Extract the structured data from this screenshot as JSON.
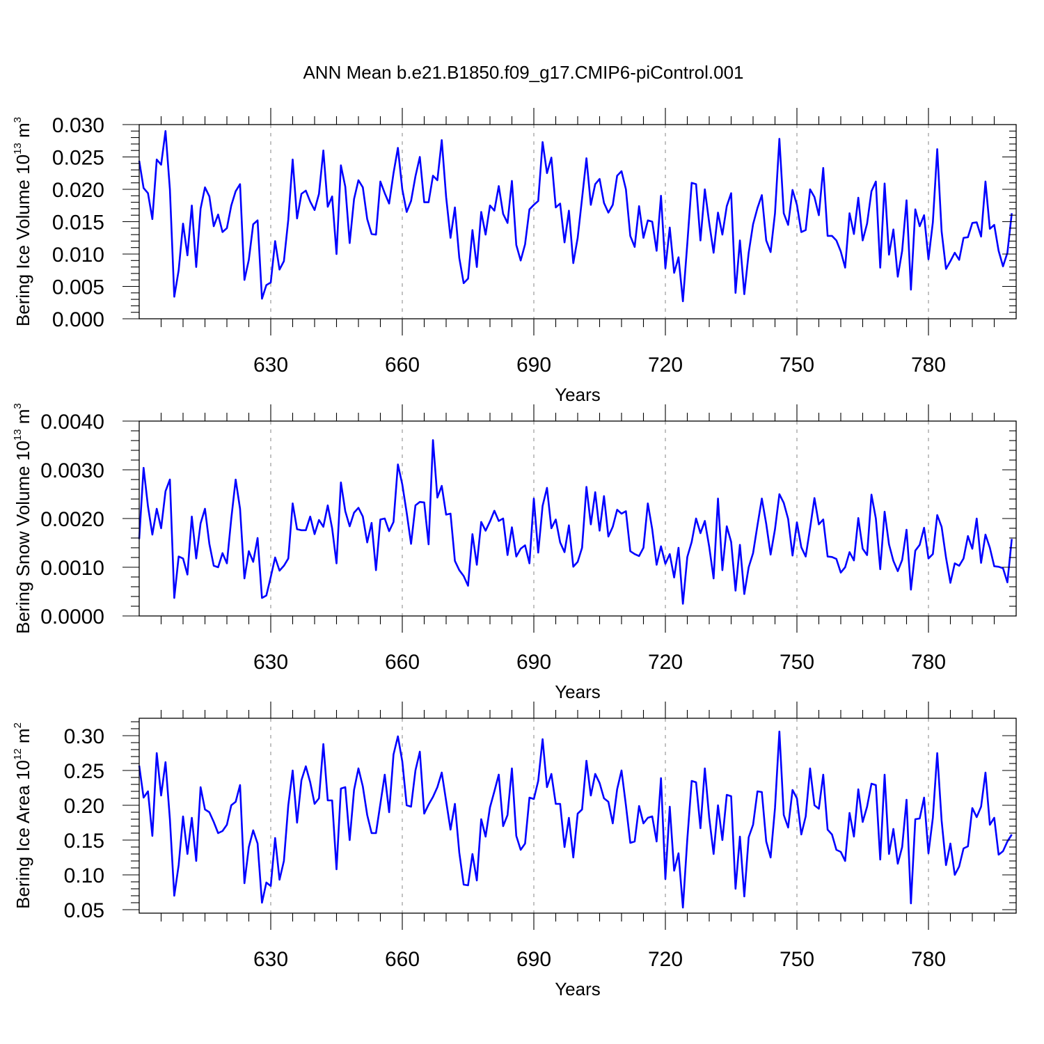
{
  "figure_title": "ANN Mean b.e21.B1850.f09_g17.CMIP6-piControl.001",
  "colors": {
    "series": "#0000ff",
    "frame": "#000000",
    "grid": "#999999"
  },
  "chart_data": [
    {
      "type": "line",
      "ylabel": {
        "text": "Bering Ice Volume 10",
        "sup": "13",
        "unit": " m",
        "unit_sup": "3"
      },
      "xlabel": "Years",
      "xlim": [
        600,
        800
      ],
      "ylim": [
        0,
        0.03
      ],
      "x_ticks": [
        630,
        660,
        690,
        720,
        750,
        780
      ],
      "x_tick_labels": [
        "630",
        "660",
        "690",
        "720",
        "750",
        "780"
      ],
      "y_ticks": [
        0,
        0.005,
        0.01,
        0.015,
        0.02,
        0.025,
        0.03
      ],
      "y_tick_labels": [
        "0.000",
        "0.005",
        "0.010",
        "0.015",
        "0.020",
        "0.025",
        "0.030"
      ],
      "grid": "vertical dashed at major x ticks",
      "x_start": 600,
      "values": [
        0.0244,
        0.0202,
        0.0194,
        0.0154,
        0.0246,
        0.0238,
        0.029,
        0.02,
        0.0034,
        0.0075,
        0.0147,
        0.0098,
        0.0175,
        0.008,
        0.017,
        0.0203,
        0.0189,
        0.0143,
        0.0161,
        0.0134,
        0.014,
        0.0175,
        0.0197,
        0.0208,
        0.006,
        0.0091,
        0.0146,
        0.0152,
        0.0031,
        0.0052,
        0.0056,
        0.012,
        0.0076,
        0.0089,
        0.0153,
        0.0246,
        0.0155,
        0.0193,
        0.0198,
        0.0181,
        0.0168,
        0.0193,
        0.026,
        0.0173,
        0.0189,
        0.01,
        0.0237,
        0.0204,
        0.0117,
        0.0185,
        0.0214,
        0.0203,
        0.0154,
        0.0131,
        0.013,
        0.0212,
        0.0194,
        0.0178,
        0.0225,
        0.0264,
        0.02,
        0.0165,
        0.0182,
        0.022,
        0.025,
        0.018,
        0.018,
        0.0221,
        0.0214,
        0.0276,
        0.0188,
        0.0125,
        0.0172,
        0.0094,
        0.0055,
        0.0062,
        0.0137,
        0.008,
        0.0165,
        0.013,
        0.0175,
        0.0167,
        0.0205,
        0.0162,
        0.0148,
        0.0213,
        0.0114,
        0.009,
        0.0115,
        0.0169,
        0.0176,
        0.0182,
        0.0273,
        0.0225,
        0.0249,
        0.0172,
        0.0178,
        0.0118,
        0.0167,
        0.0086,
        0.0125,
        0.0186,
        0.0248,
        0.0176,
        0.0208,
        0.0216,
        0.0179,
        0.0164,
        0.0176,
        0.0221,
        0.0228,
        0.02,
        0.0128,
        0.0111,
        0.0174,
        0.0125,
        0.0152,
        0.015,
        0.0105,
        0.019,
        0.0078,
        0.0141,
        0.0071,
        0.0095,
        0.0027,
        0.0116,
        0.021,
        0.0208,
        0.0121,
        0.02,
        0.0148,
        0.0102,
        0.0164,
        0.013,
        0.0174,
        0.0194,
        0.004,
        0.0121,
        0.0038,
        0.0102,
        0.0146,
        0.0171,
        0.0191,
        0.0121,
        0.0103,
        0.0163,
        0.0278,
        0.0163,
        0.0145,
        0.0199,
        0.0176,
        0.0134,
        0.0137,
        0.02,
        0.0188,
        0.016,
        0.0233,
        0.0128,
        0.0128,
        0.0121,
        0.0104,
        0.0079,
        0.0163,
        0.0131,
        0.0187,
        0.0121,
        0.0147,
        0.0197,
        0.0212,
        0.0079,
        0.0209,
        0.0099,
        0.0138,
        0.0065,
        0.0105,
        0.0183,
        0.0045,
        0.0169,
        0.0143,
        0.016,
        0.0092,
        0.0149,
        0.0262,
        0.0135,
        0.0077,
        0.0089,
        0.0102,
        0.0091,
        0.0125,
        0.0126,
        0.0148,
        0.0149,
        0.0127,
        0.0212,
        0.0139,
        0.0145,
        0.0105,
        0.0081,
        0.0102,
        0.0163
      ]
    },
    {
      "type": "line",
      "ylabel": {
        "text": "Bering Snow Volume 10",
        "sup": "13",
        "unit": " m",
        "unit_sup": "3"
      },
      "xlabel": "Years",
      "xlim": [
        600,
        800
      ],
      "ylim": [
        0,
        0.004
      ],
      "x_ticks": [
        630,
        660,
        690,
        720,
        750,
        780
      ],
      "x_tick_labels": [
        "630",
        "660",
        "690",
        "720",
        "750",
        "780"
      ],
      "y_ticks": [
        0,
        0.001,
        0.002,
        0.003,
        0.004
      ],
      "y_tick_labels": [
        "0.0000",
        "0.0010",
        "0.0020",
        "0.0030",
        "0.0040"
      ],
      "grid": "vertical dashed at major x ticks",
      "x_start": 600,
      "values": [
        0.00158,
        0.00304,
        0.00225,
        0.00167,
        0.0022,
        0.0018,
        0.00256,
        0.0028,
        0.00037,
        0.00122,
        0.00118,
        0.00085,
        0.00204,
        0.00118,
        0.0019,
        0.0022,
        0.00148,
        0.00103,
        0.001,
        0.00129,
        0.00108,
        0.002,
        0.0028,
        0.0022,
        0.00077,
        0.00133,
        0.00111,
        0.0016,
        0.00037,
        0.00042,
        0.0008,
        0.0012,
        0.00093,
        0.00103,
        0.00118,
        0.00231,
        0.00178,
        0.00176,
        0.00176,
        0.00204,
        0.00168,
        0.00197,
        0.00183,
        0.00227,
        0.0018,
        0.00108,
        0.00274,
        0.00215,
        0.00184,
        0.00212,
        0.00222,
        0.00204,
        0.00151,
        0.00191,
        0.00094,
        0.00198,
        0.002,
        0.00174,
        0.00193,
        0.00311,
        0.0027,
        0.00212,
        0.00148,
        0.00227,
        0.00234,
        0.00233,
        0.00147,
        0.00361,
        0.00243,
        0.00267,
        0.00208,
        0.0021,
        0.00113,
        0.00094,
        0.00082,
        0.00062,
        0.00168,
        0.00105,
        0.00193,
        0.00175,
        0.00194,
        0.00216,
        0.00195,
        0.002,
        0.00125,
        0.00182,
        0.00122,
        0.00138,
        0.00145,
        0.00108,
        0.00241,
        0.0013,
        0.00226,
        0.00263,
        0.0018,
        0.00198,
        0.00151,
        0.00131,
        0.00186,
        0.00101,
        0.00111,
        0.0014,
        0.00265,
        0.00188,
        0.00254,
        0.00175,
        0.00246,
        0.00163,
        0.00183,
        0.00218,
        0.0021,
        0.00215,
        0.00133,
        0.00127,
        0.00123,
        0.0014,
        0.00231,
        0.00178,
        0.00105,
        0.00143,
        0.00107,
        0.00127,
        0.00079,
        0.0014,
        0.00025,
        0.00121,
        0.00152,
        0.002,
        0.0017,
        0.00195,
        0.00142,
        0.00077,
        0.00241,
        0.00094,
        0.00184,
        0.00152,
        0.00052,
        0.00146,
        0.00045,
        0.001,
        0.00129,
        0.00186,
        0.00241,
        0.00189,
        0.00126,
        0.00178,
        0.0025,
        0.00232,
        0.00199,
        0.00124,
        0.00192,
        0.00141,
        0.00122,
        0.0018,
        0.00242,
        0.00188,
        0.00198,
        0.00122,
        0.00121,
        0.00117,
        0.00089,
        0.001,
        0.00131,
        0.00114,
        0.00201,
        0.00138,
        0.00125,
        0.00249,
        0.002,
        0.00096,
        0.00214,
        0.00147,
        0.00113,
        0.00092,
        0.00115,
        0.00177,
        0.00054,
        0.00134,
        0.00146,
        0.00181,
        0.00118,
        0.00127,
        0.00207,
        0.00183,
        0.0012,
        0.00068,
        0.00108,
        0.00103,
        0.00118,
        0.00164,
        0.00138,
        0.002,
        0.00109,
        0.00167,
        0.0014,
        0.00102,
        0.00101,
        0.00098,
        0.00069,
        0.00158
      ]
    },
    {
      "type": "line",
      "ylabel": {
        "text": "Bering Ice Area 10",
        "sup": "12",
        "unit": " m",
        "unit_sup": "2"
      },
      "xlabel": "Years",
      "xlim": [
        600,
        800
      ],
      "ylim": [
        0.045,
        0.325
      ],
      "x_ticks": [
        630,
        660,
        690,
        720,
        750,
        780
      ],
      "x_tick_labels": [
        "630",
        "660",
        "690",
        "720",
        "750",
        "780"
      ],
      "y_ticks": [
        0.05,
        0.1,
        0.15,
        0.2,
        0.25,
        0.3
      ],
      "y_tick_labels": [
        "0.05",
        "0.10",
        "0.15",
        "0.20",
        "0.25",
        "0.30"
      ],
      "grid": "vertical dashed at major x ticks",
      "x_start": 600,
      "values": [
        0.257,
        0.211,
        0.22,
        0.156,
        0.275,
        0.214,
        0.262,
        0.18,
        0.07,
        0.114,
        0.184,
        0.13,
        0.182,
        0.12,
        0.226,
        0.194,
        0.19,
        0.176,
        0.16,
        0.163,
        0.172,
        0.2,
        0.205,
        0.229,
        0.088,
        0.14,
        0.164,
        0.145,
        0.06,
        0.089,
        0.084,
        0.153,
        0.093,
        0.12,
        0.2,
        0.25,
        0.175,
        0.236,
        0.256,
        0.233,
        0.202,
        0.21,
        0.288,
        0.207,
        0.207,
        0.108,
        0.224,
        0.226,
        0.15,
        0.222,
        0.253,
        0.227,
        0.186,
        0.16,
        0.16,
        0.202,
        0.244,
        0.19,
        0.273,
        0.299,
        0.263,
        0.2,
        0.198,
        0.25,
        0.277,
        0.188,
        0.201,
        0.212,
        0.226,
        0.247,
        0.206,
        0.165,
        0.202,
        0.132,
        0.086,
        0.085,
        0.13,
        0.092,
        0.18,
        0.155,
        0.197,
        0.22,
        0.244,
        0.17,
        0.186,
        0.253,
        0.156,
        0.136,
        0.145,
        0.211,
        0.209,
        0.235,
        0.295,
        0.226,
        0.245,
        0.202,
        0.202,
        0.14,
        0.182,
        0.125,
        0.188,
        0.194,
        0.264,
        0.214,
        0.245,
        0.232,
        0.21,
        0.205,
        0.174,
        0.223,
        0.25,
        0.2,
        0.146,
        0.148,
        0.199,
        0.174,
        0.182,
        0.184,
        0.148,
        0.239,
        0.094,
        0.198,
        0.106,
        0.131,
        0.053,
        0.151,
        0.235,
        0.233,
        0.167,
        0.253,
        0.182,
        0.13,
        0.2,
        0.15,
        0.215,
        0.213,
        0.08,
        0.155,
        0.069,
        0.154,
        0.172,
        0.22,
        0.219,
        0.148,
        0.125,
        0.196,
        0.306,
        0.186,
        0.168,
        0.222,
        0.21,
        0.158,
        0.184,
        0.253,
        0.2,
        0.195,
        0.244,
        0.165,
        0.158,
        0.136,
        0.133,
        0.12,
        0.189,
        0.155,
        0.223,
        0.176,
        0.198,
        0.231,
        0.229,
        0.122,
        0.244,
        0.13,
        0.166,
        0.116,
        0.14,
        0.208,
        0.059,
        0.18,
        0.181,
        0.211,
        0.131,
        0.182,
        0.275,
        0.178,
        0.114,
        0.145,
        0.1,
        0.112,
        0.138,
        0.141,
        0.196,
        0.183,
        0.198,
        0.247,
        0.172,
        0.182,
        0.129,
        0.134,
        0.148,
        0.158
      ]
    }
  ]
}
